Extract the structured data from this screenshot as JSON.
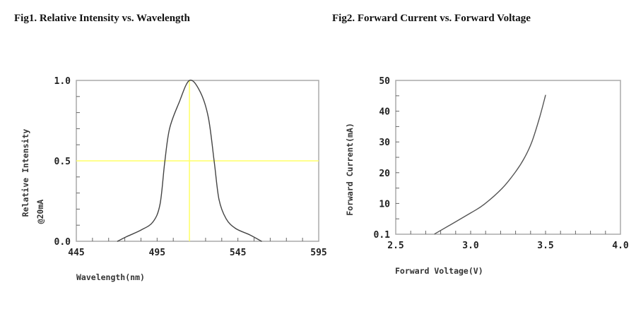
{
  "chart_data": [
    {
      "type": "line",
      "title": "Fig1. Relative Intensity vs. Wavelength",
      "xlabel": "Wavelength(nm)",
      "ylabel": "Relative Intensity",
      "ylabel2": "@20mA",
      "xlim": [
        445,
        595
      ],
      "ylim": [
        0,
        1.0
      ],
      "xticks": [
        "445",
        "495",
        "545",
        "595"
      ],
      "yticks": [
        "0.0",
        "0.5",
        "1.0"
      ],
      "reference_lines": {
        "x": 515,
        "y": 0.5,
        "color": "#ffff66"
      },
      "line_color": "#444444",
      "x": [
        470.5,
        476.4,
        485.1,
        492.4,
        496.8,
        499.7,
        502.7,
        508.5,
        515,
        521.6,
        526.7,
        530.4,
        533.3,
        537.7,
        543.5,
        552.3,
        559.6
      ],
      "y": [
        0,
        0.03,
        0.07,
        0.12,
        0.23,
        0.49,
        0.7,
        0.86,
        1.0,
        0.93,
        0.77,
        0.49,
        0.26,
        0.14,
        0.08,
        0.04,
        0
      ]
    },
    {
      "type": "line",
      "title": "Fig2. Forward Current vs. Forward Voltage",
      "xlabel": "Forward Voltage(V)",
      "ylabel": "Forward Current(mA)",
      "xlim": [
        2.5,
        4.0
      ],
      "ylim": [
        0,
        50
      ],
      "xticks": [
        "2.5",
        "3.0",
        "3.5",
        "4.0"
      ],
      "yticks": [
        "0.1",
        "10",
        "20",
        "30",
        "40",
        "50"
      ],
      "line_color": "#555555",
      "x": [
        2.76,
        3.0,
        3.09,
        3.21,
        3.3,
        3.36,
        3.41,
        3.46,
        3.5
      ],
      "y": [
        0.1,
        6.9,
        9.7,
        14.9,
        20.3,
        24.9,
        30.2,
        37.9,
        45.2
      ]
    }
  ]
}
